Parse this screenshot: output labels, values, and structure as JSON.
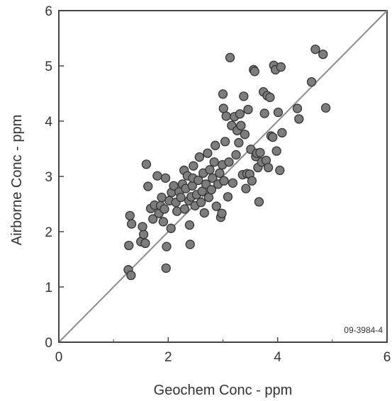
{
  "chart_data": {
    "type": "scatter",
    "title": "",
    "xlabel": "Geochem Conc - ppm",
    "ylabel": "Airborne Conc - ppm",
    "xlim": [
      0,
      6
    ],
    "ylim": [
      0,
      6
    ],
    "xticks": [
      "0",
      "2",
      "4",
      "6"
    ],
    "yticks": [
      "0",
      "1",
      "2",
      "3",
      "4",
      "5",
      "6"
    ],
    "grid": false,
    "legend": "none",
    "reference_line": {
      "kind": "1:1",
      "from": [
        0,
        0
      ],
      "to": [
        6,
        6
      ]
    },
    "annotation": "09-3984-4",
    "colors": {
      "marker_fill": "#7d7d7d",
      "marker_edge": "#333333",
      "line": "#8c8c8c",
      "frame": "#444444"
    },
    "points": [
      [
        1.27,
        1.31
      ],
      [
        1.32,
        1.21
      ],
      [
        1.28,
        1.75
      ],
      [
        1.3,
        2.29
      ],
      [
        1.33,
        2.14
      ],
      [
        1.5,
        1.82
      ],
      [
        1.55,
        1.95
      ],
      [
        1.58,
        1.79
      ],
      [
        1.53,
        2.09
      ],
      [
        1.63,
        2.82
      ],
      [
        1.6,
        3.22
      ],
      [
        1.68,
        2.42
      ],
      [
        1.72,
        2.23
      ],
      [
        1.75,
        2.48
      ],
      [
        1.8,
        3.01
      ],
      [
        1.83,
        2.33
      ],
      [
        1.86,
        2.47
      ],
      [
        1.88,
        2.62
      ],
      [
        1.91,
        2.18
      ],
      [
        1.93,
        2.41
      ],
      [
        1.95,
        2.97
      ],
      [
        1.97,
        1.73
      ],
      [
        1.96,
        1.34
      ],
      [
        2.02,
        2.56
      ],
      [
        2.06,
        2.71
      ],
      [
        2.05,
        2.06
      ],
      [
        2.1,
        2.83
      ],
      [
        2.14,
        2.53
      ],
      [
        2.16,
        2.37
      ],
      [
        2.2,
        2.72
      ],
      [
        2.23,
        2.62
      ],
      [
        2.26,
        2.86
      ],
      [
        2.29,
        3.11
      ],
      [
        2.32,
        2.78
      ],
      [
        2.35,
        3.01
      ],
      [
        2.3,
        2.41
      ],
      [
        2.38,
        2.56
      ],
      [
        2.39,
        2.12
      ],
      [
        2.4,
        1.77
      ],
      [
        2.42,
        2.63
      ],
      [
        2.44,
        2.83
      ],
      [
        2.45,
        2.97
      ],
      [
        2.46,
        3.19
      ],
      [
        2.49,
        2.47
      ],
      [
        2.52,
        2.67
      ],
      [
        2.55,
        2.93
      ],
      [
        2.57,
        3.35
      ],
      [
        2.6,
        2.53
      ],
      [
        2.62,
        2.73
      ],
      [
        2.64,
        3.06
      ],
      [
        2.66,
        2.34
      ],
      [
        2.69,
        2.86
      ],
      [
        2.72,
        3.42
      ],
      [
        2.74,
        2.62
      ],
      [
        2.76,
        3.12
      ],
      [
        2.79,
        2.76
      ],
      [
        2.81,
        2.97
      ],
      [
        2.84,
        3.26
      ],
      [
        2.86,
        3.56
      ],
      [
        2.88,
        2.46
      ],
      [
        2.91,
        2.86
      ],
      [
        2.94,
        3.06
      ],
      [
        2.96,
        2.26
      ],
      [
        2.98,
        2.33
      ],
      [
        2.99,
        3.21
      ],
      [
        3.0,
        4.49
      ],
      [
        3.01,
        4.23
      ],
      [
        3.02,
        2.92
      ],
      [
        3.04,
        3.63
      ],
      [
        3.06,
        4.09
      ],
      [
        3.09,
        2.63
      ],
      [
        3.11,
        3.26
      ],
      [
        3.13,
        5.15
      ],
      [
        3.16,
        3.92
      ],
      [
        3.18,
        2.88
      ],
      [
        3.21,
        4.08
      ],
      [
        3.24,
        3.39
      ],
      [
        3.26,
        3.83
      ],
      [
        3.29,
        3.61
      ],
      [
        3.31,
        4.13
      ],
      [
        3.33,
        3.92
      ],
      [
        3.36,
        3.03
      ],
      [
        3.38,
        4.45
      ],
      [
        3.4,
        3.76
      ],
      [
        3.42,
        2.78
      ],
      [
        3.44,
        3.05
      ],
      [
        3.46,
        4.21
      ],
      [
        3.49,
        3.04
      ],
      [
        3.51,
        3.49
      ],
      [
        3.53,
        2.92
      ],
      [
        3.56,
        4.93
      ],
      [
        3.58,
        4.9
      ],
      [
        3.6,
        3.36
      ],
      [
        3.62,
        3.42
      ],
      [
        3.64,
        3.16
      ],
      [
        3.66,
        2.54
      ],
      [
        3.68,
        3.43
      ],
      [
        3.71,
        3.26
      ],
      [
        3.74,
        4.53
      ],
      [
        3.76,
        4.14
      ],
      [
        3.79,
        3.29
      ],
      [
        3.81,
        4.46
      ],
      [
        3.83,
        3.16
      ],
      [
        3.86,
        4.43
      ],
      [
        3.88,
        3.73
      ],
      [
        3.91,
        3.71
      ],
      [
        3.93,
        5.01
      ],
      [
        3.96,
        4.93
      ],
      [
        3.98,
        3.46
      ],
      [
        4.01,
        4.16
      ],
      [
        4.04,
        3.11
      ],
      [
        4.06,
        4.98
      ],
      [
        4.08,
        3.79
      ],
      [
        4.36,
        4.23
      ],
      [
        4.39,
        4.04
      ],
      [
        4.62,
        4.71
      ],
      [
        4.69,
        5.3
      ],
      [
        4.83,
        5.21
      ],
      [
        4.88,
        4.24
      ]
    ]
  }
}
